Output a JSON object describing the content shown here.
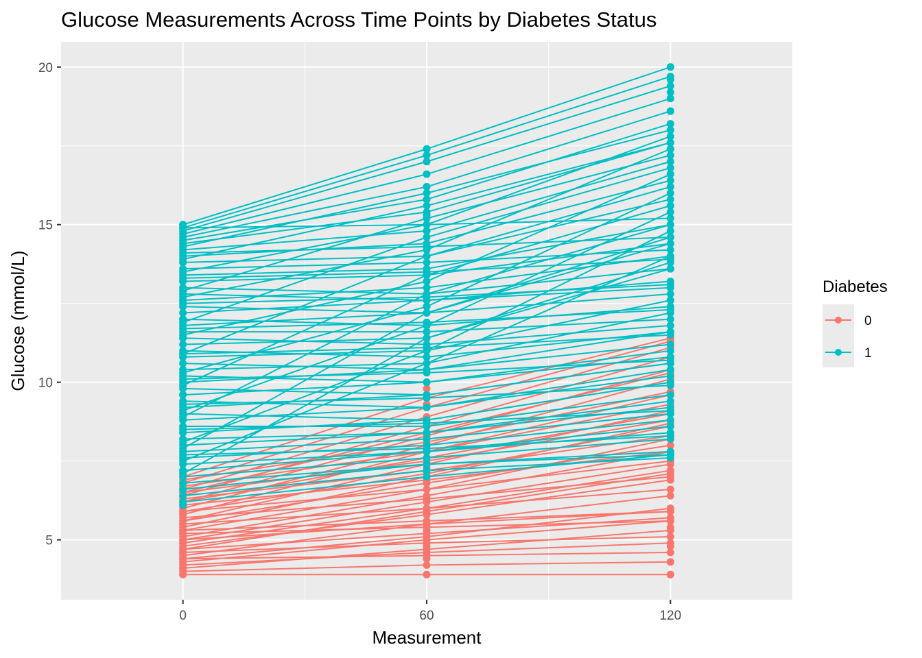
{
  "chart_data": {
    "type": "line",
    "title": "Glucose Measurements Across Time Points by Diabetes Status",
    "xlabel": "Measurement",
    "ylabel": "Glucose (mmol/L)",
    "x": [
      0,
      60,
      120
    ],
    "x_tick_labels": [
      "0",
      "60",
      "120"
    ],
    "y_ticks": [
      5,
      10,
      15,
      20
    ],
    "y_tick_labels": [
      "5",
      "10",
      "15",
      "20"
    ],
    "xlim": [
      -30,
      150
    ],
    "ylim": [
      3.1,
      20.8
    ],
    "grid": true,
    "legend": {
      "title": "Diabetes",
      "placement": "right"
    },
    "series": [
      {
        "name": "0",
        "color": "#F8766D",
        "marker_values": {
          "0": [
            3.9,
            4.1,
            4.3,
            4.6,
            4.9,
            5.2,
            5.5,
            5.8,
            6.1,
            6.4,
            6.7,
            7.0
          ],
          "60": [
            3.9,
            4.4,
            4.8,
            5.3,
            5.8,
            6.3,
            6.8,
            7.3,
            7.8,
            8.3,
            8.8,
            9.3,
            9.8
          ],
          "120": [
            3.9,
            4.3,
            4.8,
            5.4,
            6.0,
            6.6,
            7.2,
            7.8,
            8.4,
            9.0,
            9.6,
            10.2,
            10.8,
            11.4
          ]
        },
        "trajectories": [
          [
            3.9,
            3.9,
            3.9
          ],
          [
            4.0,
            4.2,
            4.3
          ],
          [
            4.2,
            4.6,
            4.9
          ],
          [
            4.3,
            5.0,
            5.6
          ],
          [
            4.5,
            5.5,
            6.4
          ],
          [
            4.6,
            4.9,
            5.1
          ],
          [
            4.8,
            5.8,
            6.9
          ],
          [
            4.9,
            6.0,
            7.2
          ],
          [
            5.0,
            5.5,
            5.9
          ],
          [
            5.1,
            6.4,
            7.8
          ],
          [
            5.2,
            5.4,
            5.6
          ],
          [
            5.3,
            6.6,
            8.2
          ],
          [
            5.4,
            7.0,
            8.7
          ],
          [
            5.5,
            6.0,
            6.6
          ],
          [
            5.6,
            7.4,
            9.1
          ],
          [
            5.7,
            6.3,
            7.0
          ],
          [
            5.8,
            7.8,
            9.6
          ],
          [
            5.9,
            6.6,
            7.5
          ],
          [
            6.0,
            8.0,
            10.1
          ],
          [
            6.1,
            6.9,
            7.8
          ],
          [
            6.2,
            8.3,
            10.4
          ],
          [
            6.3,
            7.2,
            8.3
          ],
          [
            6.4,
            8.6,
            10.8
          ],
          [
            6.5,
            7.5,
            8.8
          ],
          [
            6.6,
            8.9,
            11.1
          ],
          [
            6.7,
            7.8,
            9.3
          ],
          [
            6.8,
            9.2,
            11.3
          ],
          [
            6.9,
            8.1,
            9.7
          ],
          [
            7.0,
            9.5,
            11.4
          ],
          [
            4.4,
            4.5,
            4.6
          ],
          [
            4.7,
            5.2,
            5.7
          ],
          [
            5.0,
            6.2,
            7.4
          ],
          [
            5.3,
            5.6,
            5.9
          ],
          [
            5.6,
            6.8,
            8.0
          ],
          [
            5.9,
            7.1,
            8.6
          ],
          [
            6.2,
            7.6,
            9.0
          ],
          [
            6.5,
            8.4,
            10.3
          ],
          [
            4.1,
            4.7,
            5.3
          ],
          [
            4.4,
            5.1,
            6.0
          ],
          [
            4.7,
            5.9,
            7.1
          ]
        ]
      },
      {
        "name": "1",
        "color": "#00BFC4",
        "marker_values": {
          "0": [
            6.1,
            6.6,
            7.2,
            7.8,
            8.4,
            9.0,
            9.6,
            10.2,
            10.8,
            11.4,
            12.0,
            12.6,
            13.2,
            13.8,
            14.4,
            15.0
          ],
          "60": [
            7.6,
            8.4,
            9.2,
            10.0,
            10.8,
            11.6,
            12.4,
            13.2,
            14.0,
            14.8,
            15.3,
            15.8,
            16.2,
            16.6,
            17.0,
            17.2,
            17.4
          ],
          "120": [
            7.7,
            9.0,
            10.0,
            10.6,
            11.6,
            12.6,
            13.6,
            14.6,
            15.6,
            16.6,
            17.4,
            18.0,
            18.6,
            19.2,
            19.6,
            20.0
          ]
        },
        "trajectories": [
          [
            15.0,
            17.4,
            20.0
          ],
          [
            14.9,
            17.2,
            19.7
          ],
          [
            14.8,
            17.0,
            19.4
          ],
          [
            14.7,
            16.6,
            19.0
          ],
          [
            14.6,
            16.2,
            18.6
          ],
          [
            14.5,
            15.8,
            18.2
          ],
          [
            14.4,
            15.4,
            17.6
          ],
          [
            14.2,
            14.8,
            17.0
          ],
          [
            14.0,
            14.4,
            16.4
          ],
          [
            13.8,
            14.0,
            15.8
          ],
          [
            13.6,
            13.8,
            14.2
          ],
          [
            13.4,
            13.6,
            15.0
          ],
          [
            13.2,
            13.4,
            14.4
          ],
          [
            13.0,
            12.8,
            13.6
          ],
          [
            12.8,
            12.6,
            13.2
          ],
          [
            12.6,
            13.0,
            14.0
          ],
          [
            12.4,
            12.2,
            12.8
          ],
          [
            12.2,
            12.6,
            13.0
          ],
          [
            12.0,
            11.8,
            12.4
          ],
          [
            11.8,
            12.2,
            14.6
          ],
          [
            11.6,
            11.6,
            12.0
          ],
          [
            11.4,
            11.2,
            11.8
          ],
          [
            11.2,
            11.4,
            13.8
          ],
          [
            11.0,
            10.8,
            11.6
          ],
          [
            10.8,
            11.0,
            12.6
          ],
          [
            10.6,
            10.4,
            11.2
          ],
          [
            10.4,
            10.6,
            12.2
          ],
          [
            10.2,
            10.0,
            10.8
          ],
          [
            10.0,
            10.4,
            11.6
          ],
          [
            9.8,
            9.6,
            10.6
          ],
          [
            9.6,
            10.0,
            11.0
          ],
          [
            9.4,
            9.2,
            10.2
          ],
          [
            9.2,
            9.6,
            10.6
          ],
          [
            9.0,
            8.8,
            10.0
          ],
          [
            8.8,
            9.2,
            10.4
          ],
          [
            8.6,
            8.6,
            9.6
          ],
          [
            8.4,
            8.8,
            10.0
          ],
          [
            8.2,
            8.4,
            9.4
          ],
          [
            8.0,
            8.4,
            9.2
          ],
          [
            7.8,
            8.2,
            9.0
          ],
          [
            7.6,
            8.0,
            8.8
          ],
          [
            7.4,
            7.8,
            8.6
          ],
          [
            7.2,
            7.8,
            8.4
          ],
          [
            7.0,
            7.6,
            8.2
          ],
          [
            6.8,
            7.4,
            7.8
          ],
          [
            6.6,
            7.4,
            7.7
          ],
          [
            6.4,
            7.2,
            7.6
          ],
          [
            6.2,
            7.0,
            7.7
          ],
          [
            14.9,
            15.0,
            15.2
          ],
          [
            14.1,
            14.3,
            14.6
          ],
          [
            13.3,
            13.5,
            13.9
          ],
          [
            12.5,
            12.7,
            13.1
          ],
          [
            11.7,
            11.9,
            12.3
          ],
          [
            10.9,
            11.1,
            11.5
          ],
          [
            10.1,
            10.3,
            10.7
          ],
          [
            9.3,
            9.5,
            9.9
          ],
          [
            8.5,
            8.7,
            9.1
          ],
          [
            7.7,
            7.9,
            8.3
          ],
          [
            13.9,
            15.6,
            17.6
          ],
          [
            12.9,
            15.2,
            17.2
          ],
          [
            11.9,
            14.6,
            16.8
          ],
          [
            10.9,
            14.0,
            16.2
          ],
          [
            9.9,
            13.4,
            15.6
          ],
          [
            8.9,
            12.8,
            15.0
          ],
          [
            7.9,
            12.2,
            14.4
          ],
          [
            7.1,
            11.4,
            13.6
          ],
          [
            14.3,
            16.0,
            18.0
          ],
          [
            13.5,
            15.0,
            17.8
          ],
          [
            12.7,
            14.2,
            17.4
          ],
          [
            11.5,
            13.2,
            16.6
          ],
          [
            10.3,
            12.4,
            16.0
          ],
          [
            9.1,
            11.8,
            15.4
          ],
          [
            8.1,
            11.0,
            14.8
          ],
          [
            7.5,
            10.6,
            14.0
          ]
        ]
      }
    ]
  }
}
